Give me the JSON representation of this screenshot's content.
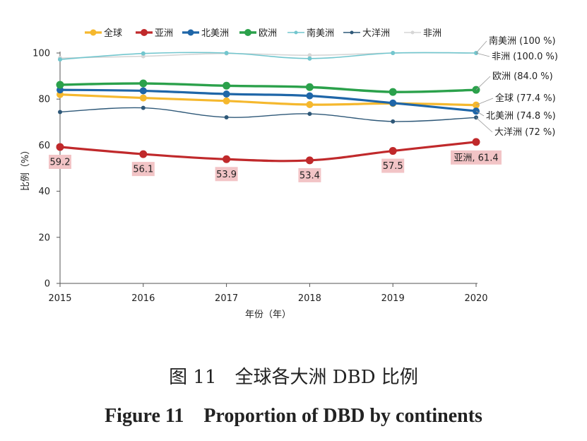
{
  "chart_data": {
    "type": "line",
    "x": [
      2015,
      2016,
      2017,
      2018,
      2019,
      2020
    ],
    "xlabel": "年份（年）",
    "ylabel": "比例（%）",
    "ylim": [
      0,
      100
    ],
    "yticks": [
      0,
      20,
      40,
      60,
      80,
      100
    ],
    "legend_position": "top",
    "series": [
      {
        "name": "全球",
        "color": "#F5B82E",
        "values": [
          82,
          80.5,
          79.2,
          77.6,
          78.1,
          77.4
        ],
        "end_label": "全球 (77.4 %)"
      },
      {
        "name": "亚洲",
        "color": "#C0292B",
        "values": [
          59.2,
          56.1,
          53.9,
          53.4,
          57.5,
          61.4
        ],
        "end_label": "亚洲, 61.4",
        "data_labels": [
          "59.2",
          "56.1",
          "53.9",
          "53.4",
          "57.5",
          "亚洲, 61.4"
        ]
      },
      {
        "name": "北美洲",
        "color": "#1F66A8",
        "values": [
          84,
          83.6,
          82.2,
          81.4,
          78.3,
          74.8
        ],
        "end_label": "北美洲 (74.8 %)"
      },
      {
        "name": "欧洲",
        "color": "#2BA14B",
        "values": [
          86.2,
          86.8,
          85.8,
          85.2,
          83.1,
          84.0
        ],
        "end_label": "欧洲 (84.0 %)"
      },
      {
        "name": "南美洲",
        "color": "#72C6CE",
        "values": [
          97.2,
          99.8,
          100,
          97.6,
          100,
          100
        ],
        "end_label": "南美洲 (100 %)"
      },
      {
        "name": "大洋洲",
        "color": "#2E5878",
        "values": [
          74.4,
          76.2,
          72.1,
          73.6,
          70.3,
          72
        ],
        "end_label": "大洋洲 (72 %)"
      },
      {
        "name": "非洲",
        "color": "#D6D6D6",
        "values": [
          97.8,
          98.6,
          99.8,
          99.0,
          100,
          100.0
        ],
        "end_label": "非洲 (100.0 %)"
      }
    ]
  },
  "caption": {
    "cn": "图 11　全球各大洲 DBD 比例",
    "en": "Figure 11　Proportion of DBD by continents"
  }
}
